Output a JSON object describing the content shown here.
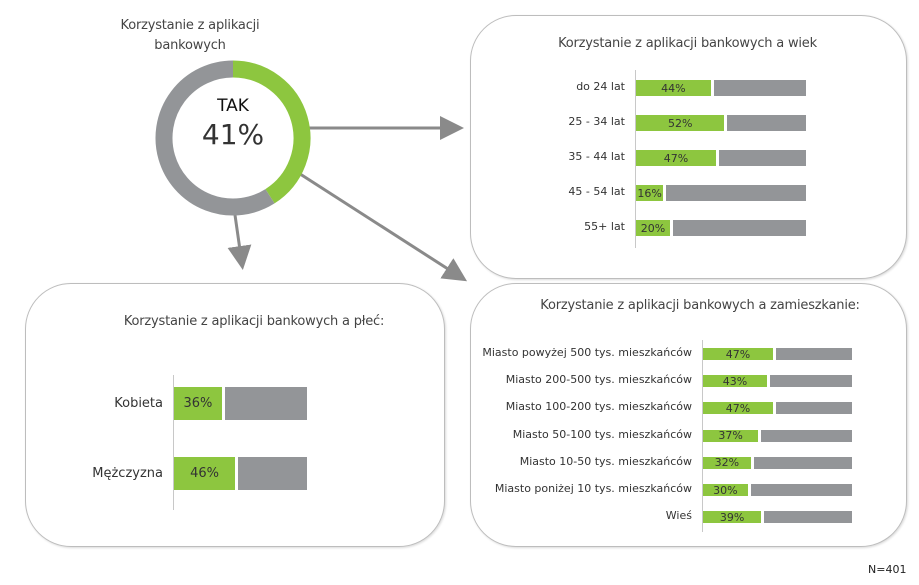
{
  "colors": {
    "yes": "#8dc63f",
    "rest": "#939598"
  },
  "chart_data": [
    {
      "type": "pie",
      "title": "Korzystanie z aplikacji bankowych",
      "center_label": "TAK",
      "center_value": "41%",
      "values": [
        41,
        59
      ]
    },
    {
      "type": "bar",
      "title": "Korzystanie z aplikacji bankowych a wiek",
      "categories": [
        "do 24 lat",
        "25 - 34 lat",
        "35 - 44 lat",
        "45 - 54 lat",
        "55+ lat"
      ],
      "values": [
        44,
        52,
        47,
        16,
        20
      ],
      "labels": [
        "44%",
        "52%",
        "47%",
        "16%",
        "20%"
      ]
    },
    {
      "type": "bar",
      "title": "Korzystanie z aplikacji bankowych a płeć:",
      "categories": [
        "Kobieta",
        "Mężczyzna"
      ],
      "values": [
        36,
        46
      ],
      "labels": [
        "36%",
        "46%"
      ]
    },
    {
      "type": "bar",
      "title": "Korzystanie z aplikacji bankowych a zamieszkanie:",
      "categories": [
        "Miasto powyżej 500 tys. mieszkańców",
        "Miasto 200-500 tys. mieszkańców",
        "Miasto 100-200 tys. mieszkańców",
        "Miasto 50-100 tys. mieszkańców",
        "Miasto 10-50 tys. mieszkańców",
        "Miasto poniżej 10 tys. mieszkańców",
        "Wieś"
      ],
      "values": [
        47,
        43,
        47,
        37,
        32,
        30,
        39
      ],
      "labels": [
        "47%",
        "43%",
        "47%",
        "37%",
        "32%",
        "30%",
        "39%"
      ]
    }
  ],
  "footnote": "N=401"
}
